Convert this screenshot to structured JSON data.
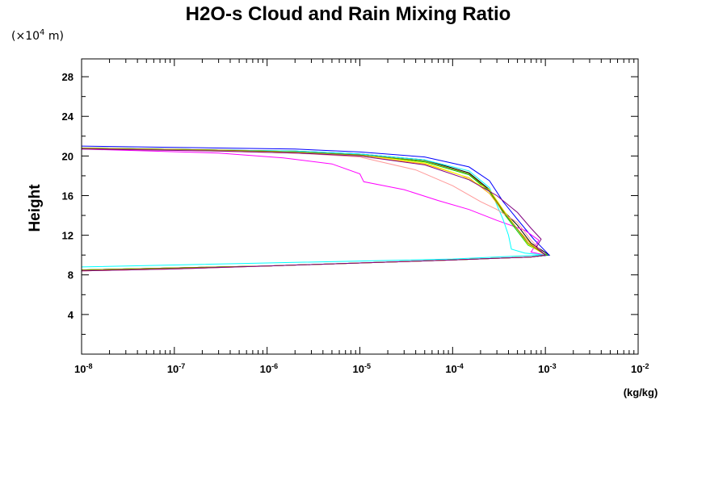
{
  "chart_data": {
    "type": "line",
    "title": "H2O-s Cloud and Rain Mixing Ratio",
    "y_units_prefix": "(×10",
    "y_units_exp": "4",
    "y_units_suffix": " m)",
    "ylabel": "Height",
    "xlabel": "(kg/kg)",
    "x_scale": "log",
    "xlim": [
      1e-08,
      0.01
    ],
    "ylim": [
      0,
      29.8
    ],
    "x_ticks": [
      {
        "base": "10",
        "exp": "-8"
      },
      {
        "base": "10",
        "exp": "-7"
      },
      {
        "base": "10",
        "exp": "-6"
      },
      {
        "base": "10",
        "exp": "-5"
      },
      {
        "base": "10",
        "exp": "-4"
      },
      {
        "base": "10",
        "exp": "-3"
      },
      {
        "base": "10",
        "exp": "-2"
      }
    ],
    "y_ticks": [
      {
        "label": "4",
        "value": 4
      },
      {
        "label": "8",
        "value": 8
      },
      {
        "label": "12",
        "value": 12
      },
      {
        "label": "16",
        "value": 16
      },
      {
        "label": "20",
        "value": 20
      },
      {
        "label": "24",
        "value": 24
      },
      {
        "label": "28",
        "value": 28
      }
    ],
    "series": [
      {
        "color": "#000000",
        "points": [
          [
            1e-08,
            20.8
          ],
          [
            3e-07,
            20.6
          ],
          [
            2e-06,
            20.5
          ],
          [
            1e-05,
            20.2
          ],
          [
            5e-05,
            19.6
          ],
          [
            0.00015,
            18.3
          ],
          [
            0.00025,
            16.6
          ],
          [
            0.00035,
            14.5
          ],
          [
            0.0005,
            13.0
          ],
          [
            0.0007,
            11.2
          ],
          [
            0.0011,
            10.0
          ],
          [
            0.0007,
            9.8
          ],
          [
            0.0001,
            9.5
          ],
          [
            1e-05,
            9.2
          ],
          [
            1e-06,
            8.9
          ],
          [
            1e-07,
            8.7
          ],
          [
            1e-08,
            8.5
          ]
        ]
      },
      {
        "color": "#0000ff",
        "points": [
          [
            1e-08,
            21.0
          ],
          [
            3e-07,
            20.8
          ],
          [
            2e-06,
            20.7
          ],
          [
            1e-05,
            20.4
          ],
          [
            5e-05,
            19.9
          ],
          [
            0.00015,
            18.9
          ],
          [
            0.00025,
            17.5
          ],
          [
            0.00035,
            15.4
          ],
          [
            0.0005,
            13.6
          ],
          [
            0.00075,
            11.6
          ],
          [
            0.0011,
            10.0
          ],
          [
            0.0007,
            9.8
          ],
          [
            0.0001,
            9.5
          ],
          [
            1e-05,
            9.2
          ],
          [
            1e-06,
            8.9
          ],
          [
            1e-07,
            8.7
          ],
          [
            1e-08,
            8.5
          ]
        ]
      },
      {
        "color": "#ff00ff",
        "points": [
          [
            1e-08,
            20.7
          ],
          [
            3e-07,
            20.3
          ],
          [
            1.5e-06,
            19.8
          ],
          [
            5e-06,
            19.2
          ],
          [
            1e-05,
            18.2
          ],
          [
            1.1e-05,
            17.4
          ],
          [
            3e-05,
            16.6
          ],
          [
            7e-05,
            15.5
          ],
          [
            0.00015,
            14.6
          ],
          [
            0.0003,
            13.5
          ],
          [
            0.0006,
            12.5
          ],
          [
            0.00085,
            11.5
          ],
          [
            0.0007,
            10.3
          ],
          [
            0.001,
            10.0
          ],
          [
            0.0007,
            9.8
          ],
          [
            0.0001,
            9.5
          ],
          [
            1e-05,
            9.2
          ],
          [
            1e-06,
            8.9
          ],
          [
            1e-07,
            8.6
          ],
          [
            1e-08,
            8.4
          ]
        ]
      },
      {
        "color": "#00ffff",
        "points": [
          [
            1e-08,
            20.8
          ],
          [
            3e-07,
            20.6
          ],
          [
            2e-06,
            20.5
          ],
          [
            1e-05,
            20.2
          ],
          [
            5e-05,
            19.6
          ],
          [
            0.00015,
            18.5
          ],
          [
            0.00025,
            16.8
          ],
          [
            0.00035,
            13.6
          ],
          [
            0.0004,
            12.0
          ],
          [
            0.00043,
            10.6
          ],
          [
            0.0006,
            10.2
          ],
          [
            0.001,
            10.0
          ],
          [
            0.0005,
            9.9
          ],
          [
            0.0001,
            9.6
          ],
          [
            1e-05,
            9.4
          ],
          [
            1e-06,
            9.2
          ],
          [
            1e-07,
            9.0
          ],
          [
            1e-08,
            8.8
          ]
        ]
      },
      {
        "color": "#00cc00",
        "points": [
          [
            1e-08,
            20.8
          ],
          [
            3e-07,
            20.6
          ],
          [
            2e-06,
            20.4
          ],
          [
            1e-05,
            20.1
          ],
          [
            5e-05,
            19.4
          ],
          [
            0.00015,
            18.1
          ],
          [
            0.00025,
            16.4
          ],
          [
            0.00035,
            14.3
          ],
          [
            0.0005,
            12.4
          ],
          [
            0.00065,
            11.0
          ],
          [
            0.00105,
            10.0
          ],
          [
            0.0007,
            9.8
          ],
          [
            0.0001,
            9.5
          ],
          [
            1e-05,
            9.2
          ],
          [
            1e-06,
            8.9
          ],
          [
            1e-07,
            8.7
          ],
          [
            1e-08,
            8.5
          ]
        ]
      },
      {
        "color": "#ffa500",
        "points": [
          [
            1e-08,
            20.8
          ],
          [
            3e-07,
            20.5
          ],
          [
            2e-06,
            20.3
          ],
          [
            1e-05,
            20.0
          ],
          [
            5e-05,
            19.2
          ],
          [
            0.00015,
            17.8
          ],
          [
            0.00025,
            16.2
          ],
          [
            0.00035,
            14.4
          ],
          [
            0.0005,
            12.6
          ],
          [
            0.0007,
            11.1
          ],
          [
            0.001,
            10.0
          ],
          [
            0.0007,
            9.8
          ],
          [
            0.0001,
            9.5
          ],
          [
            1e-05,
            9.2
          ],
          [
            1e-06,
            8.9
          ],
          [
            1e-07,
            8.6
          ],
          [
            1e-08,
            8.4
          ]
        ]
      },
      {
        "color": "#ffff00",
        "points": [
          [
            1e-08,
            20.8
          ],
          [
            3e-07,
            20.6
          ],
          [
            2e-06,
            20.4
          ],
          [
            1e-05,
            20.1
          ],
          [
            5e-05,
            19.3
          ],
          [
            0.00012,
            18.1
          ],
          [
            0.00025,
            16.6
          ],
          [
            0.00035,
            14.6
          ],
          [
            0.0005,
            12.6
          ],
          [
            0.00065,
            11.1
          ],
          [
            0.001,
            10.0
          ],
          [
            0.0007,
            9.8
          ],
          [
            0.0001,
            9.5
          ],
          [
            1e-05,
            9.2
          ],
          [
            1e-06,
            8.9
          ],
          [
            1e-07,
            8.7
          ],
          [
            1e-08,
            8.5
          ]
        ]
      },
      {
        "color": "#ff9999",
        "points": [
          [
            1e-08,
            20.8
          ],
          [
            3e-07,
            20.5
          ],
          [
            2e-06,
            20.3
          ],
          [
            1e-05,
            19.9
          ],
          [
            4e-05,
            18.6
          ],
          [
            0.0001,
            17.0
          ],
          [
            0.0002,
            15.4
          ],
          [
            0.0003,
            14.6
          ],
          [
            0.0005,
            13.3
          ],
          [
            0.0007,
            11.5
          ],
          [
            0.001,
            10.0
          ],
          [
            0.0007,
            9.8
          ],
          [
            0.0001,
            9.5
          ],
          [
            1e-05,
            9.2
          ],
          [
            1e-06,
            8.9
          ],
          [
            1e-07,
            8.6
          ],
          [
            1e-08,
            8.4
          ]
        ]
      },
      {
        "color": "#7f7f00",
        "points": [
          [
            1e-08,
            20.8
          ],
          [
            3e-07,
            20.6
          ],
          [
            2e-06,
            20.4
          ],
          [
            1e-05,
            20.1
          ],
          [
            5e-05,
            19.5
          ],
          [
            0.00015,
            18.2
          ],
          [
            0.00025,
            16.5
          ],
          [
            0.00035,
            14.4
          ],
          [
            0.0005,
            12.6
          ],
          [
            0.00065,
            11.2
          ],
          [
            0.001,
            10.0
          ],
          [
            0.0007,
            9.8
          ],
          [
            0.0001,
            9.5
          ],
          [
            1e-05,
            9.2
          ],
          [
            1e-06,
            8.9
          ],
          [
            1e-07,
            8.7
          ],
          [
            1e-08,
            8.5
          ]
        ]
      },
      {
        "color": "#800080",
        "points": [
          [
            1e-08,
            20.7
          ],
          [
            3e-07,
            20.5
          ],
          [
            2e-06,
            20.3
          ],
          [
            1e-05,
            20.0
          ],
          [
            5e-05,
            19.1
          ],
          [
            0.00015,
            17.6
          ],
          [
            0.0003,
            16.0
          ],
          [
            0.0005,
            14.3
          ],
          [
            0.0007,
            12.7
          ],
          [
            0.0009,
            11.6
          ],
          [
            0.0008,
            10.8
          ],
          [
            0.001,
            10.0
          ],
          [
            0.0007,
            9.8
          ],
          [
            0.0001,
            9.5
          ],
          [
            1e-05,
            9.2
          ],
          [
            1e-06,
            8.9
          ],
          [
            1e-07,
            8.6
          ],
          [
            1e-08,
            8.4
          ]
        ]
      }
    ]
  }
}
